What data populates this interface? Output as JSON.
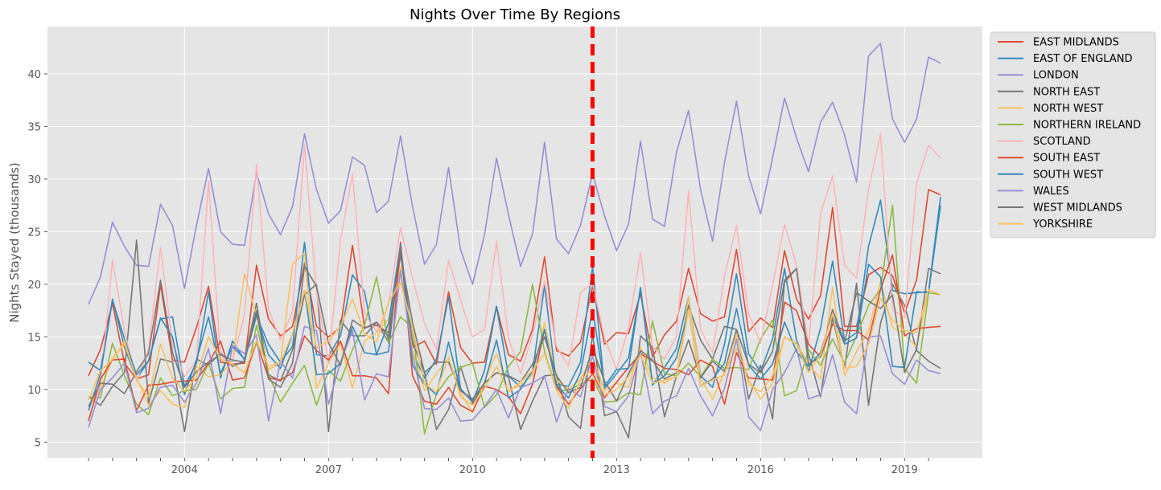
{
  "chart_data": {
    "type": "line",
    "title": "Nights Over Time By Regions",
    "xlabel": "",
    "ylabel": "Nights Stayed (thousands)",
    "xlim": [
      "2002Q1",
      "2019Q4"
    ],
    "ylim": [
      3.5,
      44.5
    ],
    "x_tick_labels": [
      "2004",
      "2007",
      "2010",
      "2013",
      "2016",
      "2019"
    ],
    "y_ticks": [
      5,
      10,
      15,
      20,
      25,
      30,
      35,
      40
    ],
    "grid": true,
    "legend_position": "outside-right",
    "vertical_marker": {
      "x": "2012Q3",
      "color": "#ff0000",
      "style": "dashed"
    },
    "quarters": [
      "2002Q1",
      "2002Q2",
      "2002Q3",
      "2002Q4",
      "2003Q1",
      "2003Q2",
      "2003Q3",
      "2003Q4",
      "2004Q1",
      "2004Q2",
      "2004Q3",
      "2004Q4",
      "2005Q1",
      "2005Q2",
      "2005Q3",
      "2005Q4",
      "2006Q1",
      "2006Q2",
      "2006Q3",
      "2006Q4",
      "2007Q1",
      "2007Q2",
      "2007Q3",
      "2007Q4",
      "2008Q1",
      "2008Q2",
      "2008Q3",
      "2008Q4",
      "2009Q1",
      "2009Q2",
      "2009Q3",
      "2009Q4",
      "2010Q1",
      "2010Q2",
      "2010Q3",
      "2010Q4",
      "2011Q1",
      "2011Q2",
      "2011Q3",
      "2011Q4",
      "2012Q1",
      "2012Q2",
      "2012Q3",
      "2012Q4",
      "2013Q1",
      "2013Q2",
      "2013Q3",
      "2013Q4",
      "2014Q1",
      "2014Q2",
      "2014Q3",
      "2014Q4",
      "2015Q1",
      "2015Q2",
      "2015Q3",
      "2015Q4",
      "2016Q1",
      "2016Q2",
      "2016Q3",
      "2016Q4",
      "2017Q1",
      "2017Q2",
      "2017Q3",
      "2017Q4",
      "2018Q1",
      "2018Q2",
      "2018Q3",
      "2018Q4",
      "2019Q1",
      "2019Q2",
      "2019Q3",
      "2019Q4"
    ],
    "series": [
      {
        "name": "EAST MIDLANDS",
        "color": "#e24a33",
        "values": [
          11.3,
          13.8,
          18.2,
          12.5,
          11.0,
          11.4,
          20.0,
          12.8,
          12.6,
          15.9,
          19.8,
          12.6,
          12.4,
          12.5,
          21.8,
          16.7,
          15.1,
          16.0,
          22.0,
          16.0,
          15.0,
          15.9,
          23.7,
          15.9,
          16.1,
          15.4,
          23.0,
          14.0,
          14.6,
          12.4,
          19.3,
          14.0,
          12.5,
          12.6,
          17.9,
          13.3,
          12.7,
          15.7,
          22.6,
          13.7,
          13.2,
          14.5,
          19.8,
          14.3,
          15.4,
          15.3,
          19.1,
          13.1,
          15.2,
          16.5,
          21.5,
          17.2,
          16.5,
          16.9,
          23.3,
          15.5,
          16.8,
          15.9,
          23.2,
          18.6,
          16.7,
          18.9,
          27.3,
          16.0,
          16.0,
          20.9,
          21.6,
          20.8,
          17.3,
          20.4,
          29.0,
          28.5
        ]
      },
      {
        "name": "EAST OF ENGLAND",
        "color": "#348abd",
        "values": [
          12.6,
          11.8,
          18.6,
          14.0,
          11.0,
          12.7,
          16.7,
          16.9,
          10.3,
          12.5,
          19.3,
          11.1,
          14.6,
          12.8,
          17.0,
          14.3,
          12.6,
          14.1,
          24.0,
          13.3,
          13.2,
          15.1,
          20.9,
          19.3,
          13.3,
          13.6,
          23.8,
          13.5,
          11.1,
          12.9,
          18.8,
          10.1,
          8.8,
          11.8,
          17.9,
          11.3,
          10.2,
          11.7,
          19.9,
          10.5,
          10.3,
          12.6,
          21.7,
          10.1,
          11.5,
          13.0,
          19.6,
          10.4,
          12.1,
          13.9,
          18.8,
          11.3,
          10.2,
          14.3,
          21.0,
          13.4,
          11.7,
          14.8,
          21.5,
          14.7,
          11.7,
          15.8,
          22.2,
          14.6,
          15.4,
          23.6,
          28.0,
          19.4,
          19.1,
          19.2,
          19.3,
          28.3
        ]
      },
      {
        "name": "LONDON",
        "color": "#988ed5",
        "values": [
          18.1,
          20.7,
          25.9,
          23.6,
          21.8,
          21.7,
          27.6,
          25.6,
          19.6,
          25.6,
          31.0,
          25.0,
          23.8,
          23.7,
          30.6,
          26.7,
          24.7,
          27.4,
          34.3,
          29.0,
          25.8,
          27.0,
          32.1,
          31.3,
          26.8,
          27.9,
          34.1,
          27.4,
          21.9,
          23.8,
          31.1,
          23.3,
          20.0,
          24.7,
          32.0,
          26.6,
          21.7,
          24.8,
          33.5,
          24.3,
          22.9,
          25.6,
          30.5,
          26.5,
          23.2,
          25.7,
          33.6,
          26.2,
          25.5,
          32.6,
          36.5,
          29.0,
          24.1,
          31.6,
          37.4,
          30.3,
          26.7,
          32.0,
          37.7,
          33.9,
          30.7,
          35.4,
          37.3,
          34.2,
          29.7,
          41.7,
          42.9,
          35.7,
          33.5,
          35.7,
          41.6,
          41.0
        ]
      },
      {
        "name": "NORTH EAST",
        "color": "#777777",
        "values": [
          9.3,
          8.5,
          10.3,
          11.6,
          24.2,
          8.7,
          12.9,
          12.6,
          6.0,
          12.9,
          12.3,
          13.5,
          12.2,
          12.7,
          18.2,
          11.4,
          10.8,
          13.8,
          19.0,
          20.0,
          6.0,
          16.6,
          15.1,
          15.1,
          16.4,
          14.5,
          22.8,
          16.4,
          11.6,
          6.2,
          8.1,
          12.2,
          8.6,
          10.6,
          11.6,
          11.2,
          6.2,
          8.9,
          11.3,
          11.4,
          7.4,
          6.3,
          15.2,
          7.5,
          7.9,
          5.4,
          15.1,
          14.0,
          7.4,
          11.3,
          18.0,
          14.7,
          12.9,
          16.0,
          15.7,
          9.1,
          12.3,
          7.2,
          20.2,
          21.5,
          13.4,
          9.3,
          16.8,
          12.0,
          20.1,
          8.5,
          16.3,
          20.0,
          18.0,
          13.7,
          12.7,
          12.0
        ]
      },
      {
        "name": "NORTH WEST",
        "color": "#fbc15e",
        "values": [
          8.4,
          10.0,
          13.0,
          14.3,
          11.1,
          8.5,
          9.9,
          8.6,
          8.3,
          12.2,
          11.2,
          11.4,
          12.7,
          21.0,
          17.0,
          11.9,
          12.5,
          21.9,
          23.0,
          10.1,
          12.5,
          14.4,
          10.1,
          14.6,
          15.4,
          16.7,
          21.6,
          13.7,
          9.9,
          11.5,
          13.0,
          9.7,
          7.8,
          10.8,
          13.4,
          9.9,
          10.4,
          11.4,
          16.4,
          10.9,
          10.0,
          11.0,
          13.1,
          9.9,
          10.6,
          10.2,
          14.0,
          11.1,
          10.6,
          11.3,
          18.8,
          11.1,
          9.1,
          11.6,
          13.9,
          10.9,
          9.1,
          10.5,
          15.0,
          14.4,
          12.4,
          11.0,
          19.7,
          11.3,
          13.6,
          15.6,
          20.3,
          15.9,
          15.3,
          14.0,
          19.5,
          19.0
        ]
      },
      {
        "name": "NORTHERN IRELAND",
        "color": "#8eba42",
        "values": [
          9.3,
          9.2,
          14.4,
          11.3,
          8.6,
          7.6,
          11.1,
          9.4,
          9.9,
          10.0,
          12.5,
          9.1,
          10.1,
          10.2,
          16.1,
          11.4,
          8.8,
          10.6,
          12.3,
          8.5,
          11.8,
          10.8,
          13.8,
          16.1,
          20.7,
          14.4,
          16.9,
          15.9,
          5.8,
          9.6,
          11.2,
          12.1,
          12.5,
          8.3,
          9.5,
          12.2,
          13.6,
          20.0,
          13.6,
          10.0,
          9.9,
          10.5,
          11.0,
          8.8,
          8.9,
          9.7,
          9.5,
          16.5,
          11.5,
          11.3,
          12.5,
          11.2,
          12.9,
          12.0,
          12.1,
          11.9,
          14.8,
          16.6,
          9.4,
          9.9,
          13.8,
          12.3,
          14.8,
          12.5,
          15.1,
          18.0,
          19.5,
          27.5,
          12.0,
          10.6,
          19.2,
          19.0
        ]
      },
      {
        "name": "SCOTLAND",
        "color": "#ffb5b8",
        "values": [
          7.2,
          10.5,
          22.3,
          15.6,
          10.8,
          13.8,
          23.5,
          14.4,
          11.2,
          12.8,
          29.8,
          13.1,
          12.7,
          17.1,
          31.4,
          17.6,
          14.7,
          17.4,
          33.2,
          19.3,
          12.6,
          24.2,
          30.5,
          17.2,
          15.5,
          18.1,
          25.4,
          20.6,
          16.3,
          13.8,
          22.3,
          18.5,
          15.0,
          15.7,
          24.1,
          14.9,
          11.5,
          15.2,
          20.3,
          14.1,
          12.2,
          19.2,
          20.1,
          14.9,
          11.9,
          15.9,
          23.0,
          14.1,
          12.9,
          15.1,
          28.9,
          15.7,
          13.5,
          20.8,
          25.6,
          17.2,
          14.4,
          19.9,
          25.7,
          21.8,
          14.2,
          26.7,
          30.3,
          21.8,
          20.6,
          29.0,
          34.3,
          17.6,
          16.8,
          29.6,
          33.2,
          32.0
        ]
      },
      {
        "name": "SOUTH EAST",
        "color": "#e24a33",
        "values": [
          7.0,
          11.0,
          12.8,
          12.9,
          8.0,
          10.4,
          10.5,
          10.7,
          10.8,
          10.9,
          12.5,
          14.6,
          10.9,
          11.1,
          14.5,
          11.1,
          10.9,
          11.6,
          15.1,
          13.7,
          12.8,
          14.6,
          11.3,
          11.3,
          11.1,
          9.6,
          24.0,
          11.3,
          8.9,
          8.6,
          10.2,
          8.5,
          7.9,
          10.3,
          10.0,
          9.3,
          7.7,
          10.5,
          15.7,
          10.3,
          8.6,
          10.1,
          11.5,
          9.2,
          10.7,
          12.1,
          13.4,
          12.7,
          12.0,
          11.9,
          11.4,
          12.8,
          12.2,
          8.6,
          13.5,
          11.1,
          11.0,
          10.9,
          18.3,
          17.5,
          14.3,
          13.1,
          16.2,
          15.6,
          15.6,
          14.7,
          19.5,
          22.8,
          15.1,
          15.8,
          15.9,
          16.0
        ]
      },
      {
        "name": "SOUTH WEST",
        "color": "#348abd",
        "values": [
          8.0,
          11.5,
          18.5,
          14.8,
          11.4,
          12.7,
          16.8,
          15.0,
          9.5,
          12.8,
          16.9,
          11.5,
          14.1,
          12.9,
          17.1,
          13.3,
          12.0,
          15.3,
          19.4,
          11.4,
          11.5,
          12.5,
          16.0,
          13.5,
          13.3,
          16.3,
          23.8,
          12.3,
          10.5,
          9.5,
          14.5,
          9.9,
          9.1,
          10.6,
          14.7,
          9.2,
          10.0,
          11.8,
          15.7,
          10.4,
          9.2,
          11.6,
          17.6,
          10.3,
          11.9,
          12.0,
          19.7,
          10.5,
          11.3,
          13.0,
          17.6,
          10.3,
          11.0,
          12.5,
          17.7,
          12.3,
          11.0,
          12.4,
          16.4,
          13.6,
          12.2,
          13.5,
          17.1,
          14.3,
          14.9,
          21.9,
          20.7,
          12.2,
          12.1,
          19.3,
          19.2,
          27.5
        ]
      },
      {
        "name": "WALES",
        "color": "#988ed5",
        "values": [
          6.4,
          10.0,
          11.1,
          12.5,
          7.8,
          8.2,
          10.2,
          10.4,
          8.8,
          10.6,
          13.9,
          7.7,
          14.2,
          13.4,
          15.2,
          7.0,
          12.7,
          11.1,
          16.0,
          15.6,
          8.6,
          12.6,
          15.6,
          9.0,
          11.5,
          11.2,
          21.3,
          13.3,
          8.2,
          8.1,
          9.2,
          7.0,
          7.1,
          8.4,
          10.0,
          7.3,
          10.2,
          10.6,
          11.3,
          6.9,
          10.1,
          9.3,
          13.2,
          8.4,
          7.9,
          9.4,
          13.6,
          7.7,
          8.9,
          9.4,
          12.0,
          9.4,
          7.5,
          10.1,
          14.8,
          7.4,
          6.1,
          10.0,
          11.6,
          13.9,
          9.1,
          9.5,
          13.3,
          8.8,
          7.7,
          15.0,
          15.1,
          11.5,
          10.5,
          12.8,
          11.8,
          11.5
        ]
      },
      {
        "name": "WEST MIDLANDS",
        "color": "#777777",
        "values": [
          8.4,
          10.6,
          10.5,
          9.6,
          11.7,
          13.4,
          20.4,
          13.5,
          10.2,
          11.7,
          12.6,
          13.3,
          12.8,
          12.6,
          17.5,
          11.0,
          10.2,
          12.5,
          21.7,
          19.8,
          14.4,
          12.3,
          16.6,
          15.8,
          16.4,
          15.0,
          23.6,
          14.5,
          11.6,
          12.6,
          12.6,
          9.9,
          9.0,
          10.6,
          11.6,
          11.3,
          10.7,
          12.4,
          15.0,
          11.3,
          9.7,
          10.2,
          13.9,
          10.8,
          8.9,
          11.5,
          13.7,
          12.8,
          11.0,
          11.6,
          14.7,
          11.1,
          12.7,
          11.7,
          15.7,
          12.4,
          11.6,
          13.6,
          20.4,
          21.5,
          12.4,
          13.1,
          17.6,
          14.5,
          19.2,
          18.4,
          17.7,
          19.0,
          11.6,
          13.8,
          21.5,
          21.0
        ]
      },
      {
        "name": "YORKSHIRE",
        "color": "#fbc15e",
        "values": [
          9.0,
          11.8,
          12.8,
          14.6,
          10.9,
          9.3,
          14.3,
          11.1,
          9.8,
          11.2,
          15.0,
          12.9,
          12.4,
          11.6,
          14.6,
          12.2,
          12.6,
          15.3,
          19.4,
          14.0,
          14.6,
          16.0,
          18.6,
          15.3,
          14.5,
          18.3,
          20.2,
          15.9,
          10.5,
          9.8,
          13.1,
          9.3,
          8.5,
          10.1,
          12.2,
          9.8,
          10.7,
          11.8,
          13.4,
          9.9,
          8.2,
          10.9,
          11.9,
          9.5,
          10.0,
          11.2,
          13.3,
          10.6,
          10.9,
          11.2,
          17.6,
          10.3,
          10.9,
          11.4,
          15.3,
          10.5,
          9.8,
          11.3,
          15.0,
          14.3,
          11.6,
          13.3,
          17.2,
          12.0,
          12.2,
          14.3,
          18.7,
          16.6,
          15.6,
          15.4,
          19.5,
          19.0
        ]
      }
    ]
  }
}
